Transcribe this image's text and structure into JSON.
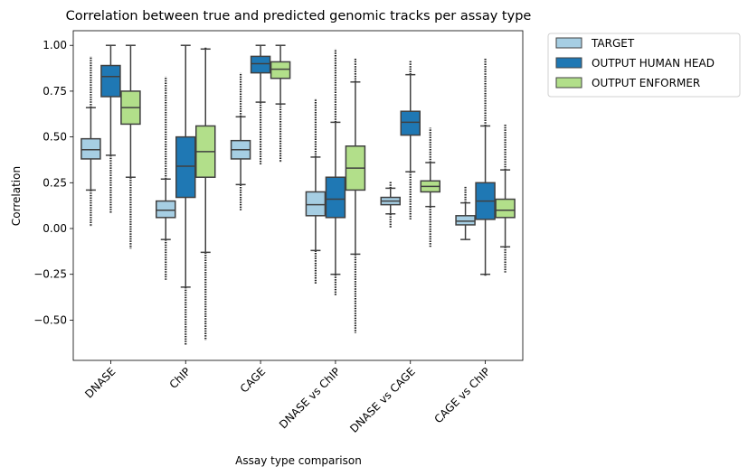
{
  "chart_data": {
    "type": "box",
    "title": "Correlation between true and predicted genomic tracks per assay type",
    "xlabel": "Assay type comparison",
    "ylabel": "Correlation",
    "ylim": [
      -0.72,
      1.08
    ],
    "yticks": [
      -0.5,
      -0.25,
      0.0,
      0.25,
      0.5,
      0.75,
      1.0
    ],
    "ytick_labels": [
      "−0.50",
      "−0.25",
      "0.00",
      "0.25",
      "0.50",
      "0.75",
      "1.00"
    ],
    "categories": [
      "DNASE",
      "ChIP",
      "CAGE",
      "DNASE vs ChIP",
      "DNASE vs CAGE",
      "CAGE vs ChIP"
    ],
    "legend_position": "outside-top-right",
    "series": [
      {
        "name": "TARGET",
        "color": "#a6cee3",
        "boxes": [
          {
            "whislo": 0.21,
            "q1": 0.38,
            "median": 0.43,
            "q3": 0.49,
            "whishi": 0.66,
            "flier_lo": 0.01,
            "flier_hi": 0.94
          },
          {
            "whislo": -0.06,
            "q1": 0.06,
            "median": 0.1,
            "q3": 0.15,
            "whishi": 0.27,
            "flier_lo": -0.28,
            "flier_hi": 0.83
          },
          {
            "whislo": 0.24,
            "q1": 0.38,
            "median": 0.43,
            "q3": 0.48,
            "whishi": 0.61,
            "flier_lo": 0.1,
            "flier_hi": 0.85
          },
          {
            "whislo": -0.12,
            "q1": 0.07,
            "median": 0.13,
            "q3": 0.2,
            "whishi": 0.39,
            "flier_lo": -0.3,
            "flier_hi": 0.71
          },
          {
            "whislo": 0.08,
            "q1": 0.13,
            "median": 0.15,
            "q3": 0.17,
            "whishi": 0.22,
            "flier_lo": 0.0,
            "flier_hi": 0.26
          },
          {
            "whislo": -0.06,
            "q1": 0.02,
            "median": 0.04,
            "q3": 0.07,
            "whishi": 0.14,
            "flier_lo": -0.06,
            "flier_hi": 0.23
          }
        ]
      },
      {
        "name": "OUTPUT HUMAN HEAD",
        "color": "#1f78b4",
        "boxes": [
          {
            "whislo": 0.4,
            "q1": 0.72,
            "median": 0.83,
            "q3": 0.89,
            "whishi": 1.0,
            "flier_lo": 0.08,
            "flier_hi": 1.0
          },
          {
            "whislo": -0.32,
            "q1": 0.17,
            "median": 0.34,
            "q3": 0.5,
            "whishi": 1.0,
            "flier_lo": -0.64,
            "flier_hi": 1.0
          },
          {
            "whislo": 0.69,
            "q1": 0.85,
            "median": 0.9,
            "q3": 0.94,
            "whishi": 1.0,
            "flier_lo": 0.35,
            "flier_hi": 1.0
          },
          {
            "whislo": -0.25,
            "q1": 0.06,
            "median": 0.16,
            "q3": 0.28,
            "whishi": 0.58,
            "flier_lo": -0.37,
            "flier_hi": 0.98
          },
          {
            "whislo": 0.31,
            "q1": 0.51,
            "median": 0.58,
            "q3": 0.64,
            "whishi": 0.84,
            "flier_lo": 0.05,
            "flier_hi": 0.92
          },
          {
            "whislo": -0.25,
            "q1": 0.05,
            "median": 0.15,
            "q3": 0.25,
            "whishi": 0.56,
            "flier_lo": -0.26,
            "flier_hi": 0.93
          }
        ]
      },
      {
        "name": "OUTPUT ENFORMER",
        "color": "#b2df8a",
        "boxes": [
          {
            "whislo": 0.28,
            "q1": 0.57,
            "median": 0.66,
            "q3": 0.75,
            "whishi": 1.0,
            "flier_lo": -0.11,
            "flier_hi": 1.0
          },
          {
            "whislo": -0.13,
            "q1": 0.28,
            "median": 0.42,
            "q3": 0.56,
            "whishi": 0.98,
            "flier_lo": -0.61,
            "flier_hi": 0.99
          },
          {
            "whislo": 0.68,
            "q1": 0.82,
            "median": 0.87,
            "q3": 0.91,
            "whishi": 1.0,
            "flier_lo": 0.36,
            "flier_hi": 1.0
          },
          {
            "whislo": -0.14,
            "q1": 0.21,
            "median": 0.33,
            "q3": 0.45,
            "whishi": 0.8,
            "flier_lo": -0.57,
            "flier_hi": 0.93
          },
          {
            "whislo": 0.12,
            "q1": 0.2,
            "median": 0.23,
            "q3": 0.26,
            "whishi": 0.36,
            "flier_lo": -0.1,
            "flier_hi": 0.55
          },
          {
            "whislo": -0.1,
            "q1": 0.06,
            "median": 0.1,
            "q3": 0.16,
            "whishi": 0.32,
            "flier_lo": -0.24,
            "flier_hi": 0.57
          }
        ]
      }
    ]
  }
}
